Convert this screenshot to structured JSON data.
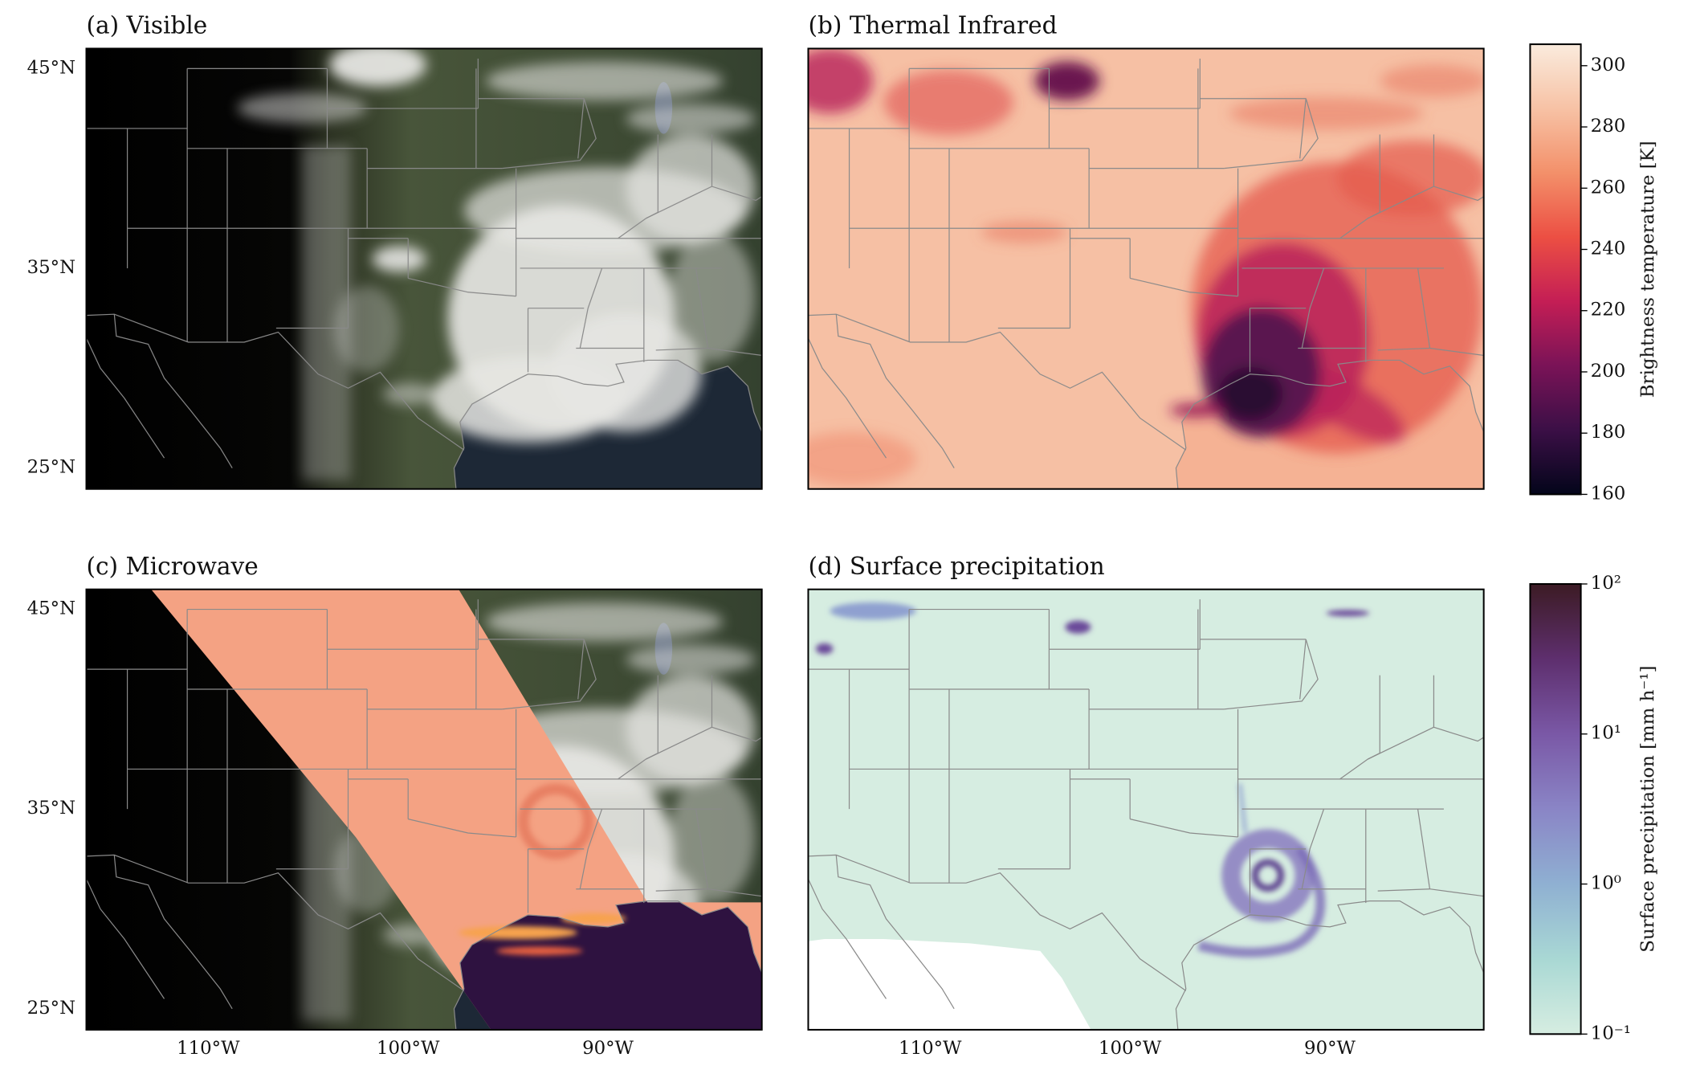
{
  "panels": [
    {
      "title": "(a) Visible"
    },
    {
      "title": "(b) Thermal Infrared"
    },
    {
      "title": "(c) Microwave"
    },
    {
      "title": "(d) Surface precipitation"
    }
  ],
  "xlim": [
    -116.1,
    -82.3
  ],
  "ylim": [
    23.95,
    46
  ],
  "lat_ticks": [
    {
      "value": 45,
      "label": "45°N"
    },
    {
      "value": 35,
      "label": "35°N"
    },
    {
      "value": 25,
      "label": "25°N"
    }
  ],
  "lon_ticks": [
    {
      "value": -110,
      "label": "110°W"
    },
    {
      "value": -100,
      "label": "100°W"
    },
    {
      "value": -90,
      "label": "90°W"
    }
  ],
  "colorbars": [
    {
      "label": "Brightness temperature [K]",
      "scale": "linear",
      "lim": [
        160,
        307
      ],
      "ticks": [
        160,
        180,
        200,
        220,
        240,
        260,
        280,
        300
      ],
      "colors": [
        "#03051a",
        "#3b0f46",
        "#7a1357",
        "#c41e55",
        "#ec4f43",
        "#f3906a",
        "#f7c2a5",
        "#faebdd"
      ]
    },
    {
      "label": "Surface precipitation [mm h⁻¹]",
      "scale": "log",
      "lim": [
        0.1,
        100
      ],
      "ticks": [
        {
          "value": 0.1,
          "label": "10⁻¹"
        },
        {
          "value": 1,
          "label": "10⁰"
        },
        {
          "value": 10,
          "label": "10¹"
        },
        {
          "value": 100,
          "label": "10²"
        }
      ],
      "colors": [
        "#d6ede1",
        "#a9d8d4",
        "#8fb0d2",
        "#8a85c6",
        "#7a58a6",
        "#5e2f6e",
        "#3c1b24"
      ]
    }
  ]
}
